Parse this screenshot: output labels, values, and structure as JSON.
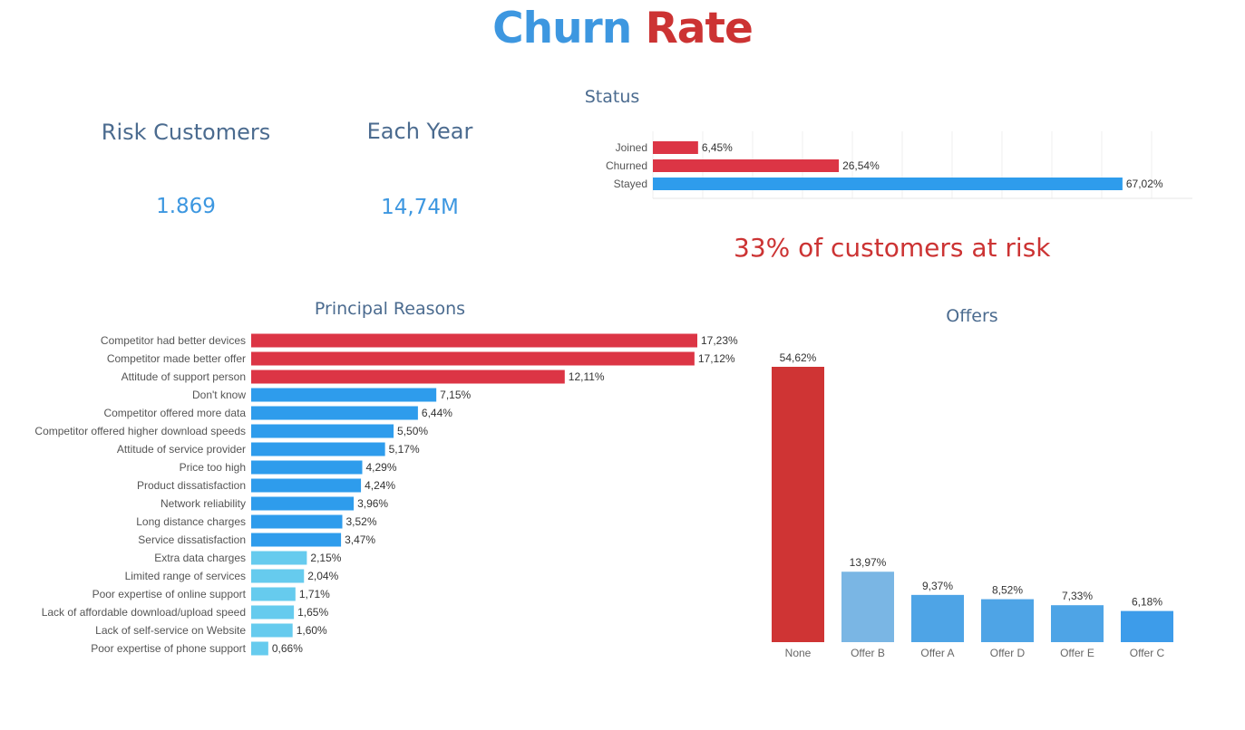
{
  "title": {
    "word1": "Churn",
    "word2": "Rate"
  },
  "kpis": [
    {
      "label": "Risk Customers",
      "value": "1.869"
    },
    {
      "label": "Each Year",
      "value": "14,74M"
    }
  ],
  "risk_text": "33% of customers at risk",
  "colors": {
    "red": "#dc3545",
    "red_dark": "#cf3434",
    "blue": "#2e9cec",
    "light_blue": "#66cbee",
    "offer_b": "#7ab6e4",
    "offer_blue": "#4ea4e6",
    "title_blue": "#3d97e0",
    "slate": "#4b6b8f"
  },
  "chart_data": [
    {
      "id": "status",
      "type": "bar",
      "orientation": "horizontal",
      "title": "Status",
      "categories": [
        "Joined",
        "Churned",
        "Stayed"
      ],
      "values": [
        6.45,
        26.54,
        67.02
      ],
      "labels": [
        "6,45%",
        "26,54%",
        "67,02%"
      ],
      "colors": [
        "#dc3545",
        "#dc3545",
        "#2e9cec"
      ],
      "xlim": [
        0,
        77
      ],
      "grid": true
    },
    {
      "id": "reasons",
      "type": "bar",
      "orientation": "horizontal",
      "title": "Principal Reasons",
      "categories": [
        "Competitor had better devices",
        "Competitor made better offer",
        "Attitude of support person",
        "Don't know",
        "Competitor offered more data",
        "Competitor offered higher download speeds",
        "Attitude of service provider",
        "Price too high",
        "Product dissatisfaction",
        "Network reliability",
        "Long distance charges",
        "Service dissatisfaction",
        "Extra data charges",
        "Limited range of services",
        "Poor expertise of online support",
        "Lack of affordable download/upload speed",
        "Lack of self-service on Website",
        "Poor expertise of phone support"
      ],
      "values": [
        17.23,
        17.12,
        12.11,
        7.15,
        6.44,
        5.5,
        5.17,
        4.29,
        4.24,
        3.96,
        3.52,
        3.47,
        2.15,
        2.04,
        1.71,
        1.65,
        1.6,
        0.66
      ],
      "labels": [
        "17,23%",
        "17,12%",
        "12,11%",
        "7,15%",
        "6,44%",
        "5,50%",
        "5,17%",
        "4,29%",
        "4,24%",
        "3,96%",
        "3,52%",
        "3,47%",
        "2,15%",
        "2,04%",
        "1,71%",
        "1,65%",
        "1,60%",
        "0,66%"
      ],
      "groups": [
        "red",
        "red",
        "red",
        "blue",
        "blue",
        "blue",
        "blue",
        "blue",
        "blue",
        "blue",
        "blue",
        "blue",
        "light",
        "light",
        "light",
        "light",
        "light",
        "light"
      ]
    },
    {
      "id": "offers",
      "type": "bar",
      "orientation": "vertical",
      "title": "Offers",
      "categories": [
        "None",
        "Offer B",
        "Offer A",
        "Offer D",
        "Offer E",
        "Offer C"
      ],
      "values": [
        54.62,
        13.97,
        9.37,
        8.52,
        7.33,
        6.18
      ],
      "labels": [
        "54,62%",
        "13,97%",
        "9,37%",
        "8,52%",
        "7,33%",
        "6,18%"
      ],
      "colors": [
        "#cf3434",
        "#7ab6e4",
        "#4ea4e6",
        "#4ea4e6",
        "#4ea4e6",
        "#3d9cea"
      ]
    }
  ]
}
